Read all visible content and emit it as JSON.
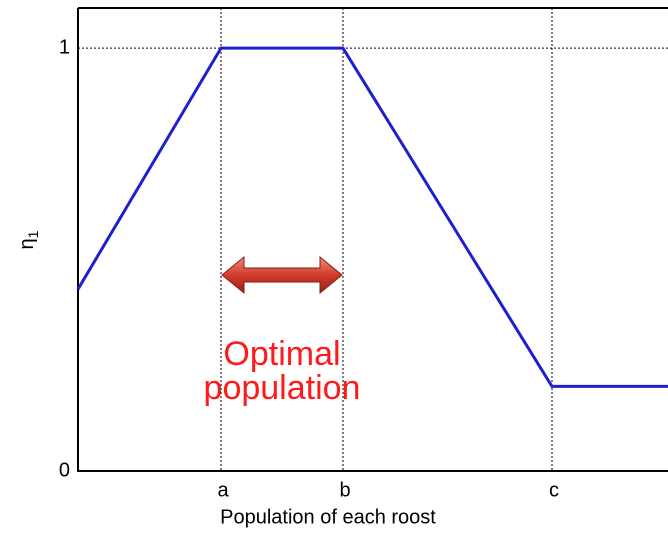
{
  "chart_data": {
    "type": "line",
    "x_label": "Population of each roost",
    "y_label": "η",
    "y_label_sub": "1",
    "annotation": [
      "Optimal",
      "population"
    ],
    "x": [
      0,
      143,
      265,
      474,
      590
    ],
    "series": [
      {
        "color": "#1f1fd0",
        "values": [
          0.43,
          1,
          1,
          0.2,
          0.2
        ]
      }
    ],
    "xlim": [
      0,
      590
    ],
    "ylim": [
      0,
      1.095
    ],
    "xticks": [
      {
        "value": 143,
        "label": "a"
      },
      {
        "value": 265,
        "label": "b"
      },
      {
        "value": 474,
        "label": "c"
      }
    ],
    "yticks": [
      0,
      1
    ],
    "grid": true
  }
}
